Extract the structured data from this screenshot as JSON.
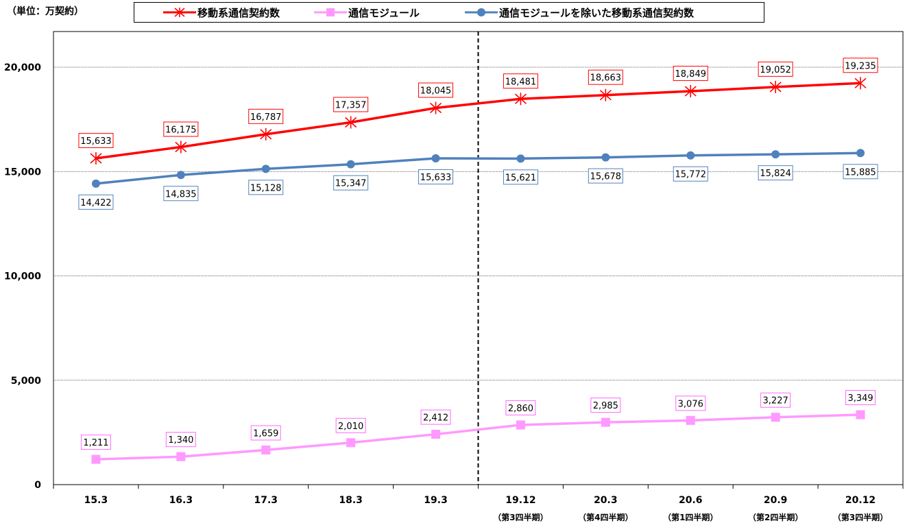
{
  "unit_label": "（単位：万契約）",
  "legend": [
    {
      "label": "移動系通信契約数",
      "color": "#ff0000",
      "marker": "asterisk-icon"
    },
    {
      "label": "通信モジュール",
      "color": "#ff99ff",
      "marker": "square-icon"
    },
    {
      "label": "通信モジュールを除いた移動系通信契約数",
      "color": "#4f81bd",
      "marker": "circle-icon"
    }
  ],
  "chart_data": {
    "type": "line",
    "title": "",
    "xlabel": "",
    "ylabel": "",
    "categories": [
      "15.3",
      "16.3",
      "17.3",
      "18.3",
      "19.3",
      "19.12",
      "20.3",
      "20.6",
      "20.9",
      "20.12"
    ],
    "category_sublabels": [
      "",
      "",
      "",
      "",
      "",
      "（第3四半期）",
      "（第4四半期）",
      "（第1四半期）",
      "（第2四半期）",
      "（第3四半期）"
    ],
    "y_ticks": [
      0,
      5000,
      10000,
      15000,
      20000
    ],
    "y_tick_labels": [
      "0",
      "5,000",
      "10,000",
      "15,000",
      "20,000"
    ],
    "ylim": [
      0,
      20000
    ],
    "grid": true,
    "divider_after_category": "19.3",
    "series": [
      {
        "name": "移動系通信契約数",
        "color": "#ff0000",
        "marker": "asterisk",
        "values": [
          15633,
          16175,
          16787,
          17357,
          18045,
          18481,
          18663,
          18849,
          19052,
          19235
        ],
        "labels": [
          "15,633",
          "16,175",
          "16,787",
          "17,357",
          "18,045",
          "18,481",
          "18,663",
          "18,849",
          "19,052",
          "19,235"
        ]
      },
      {
        "name": "通信モジュール",
        "color": "#ff99ff",
        "marker": "square",
        "values": [
          1211,
          1340,
          1659,
          2010,
          2412,
          2860,
          2985,
          3076,
          3227,
          3349
        ],
        "labels": [
          "1,211",
          "1,340",
          "1,659",
          "2,010",
          "2,412",
          "2,860",
          "2,985",
          "3,076",
          "3,227",
          "3,349"
        ]
      },
      {
        "name": "通信モジュールを除いた移動系通信契約数",
        "color": "#4f81bd",
        "marker": "circle",
        "values": [
          14422,
          14835,
          15128,
          15347,
          15633,
          15621,
          15678,
          15772,
          15824,
          15885
        ],
        "labels": [
          "14,422",
          "14,835",
          "15,128",
          "15,347",
          "15,633",
          "15,621",
          "15,678",
          "15,772",
          "15,824",
          "15,885"
        ]
      }
    ]
  }
}
